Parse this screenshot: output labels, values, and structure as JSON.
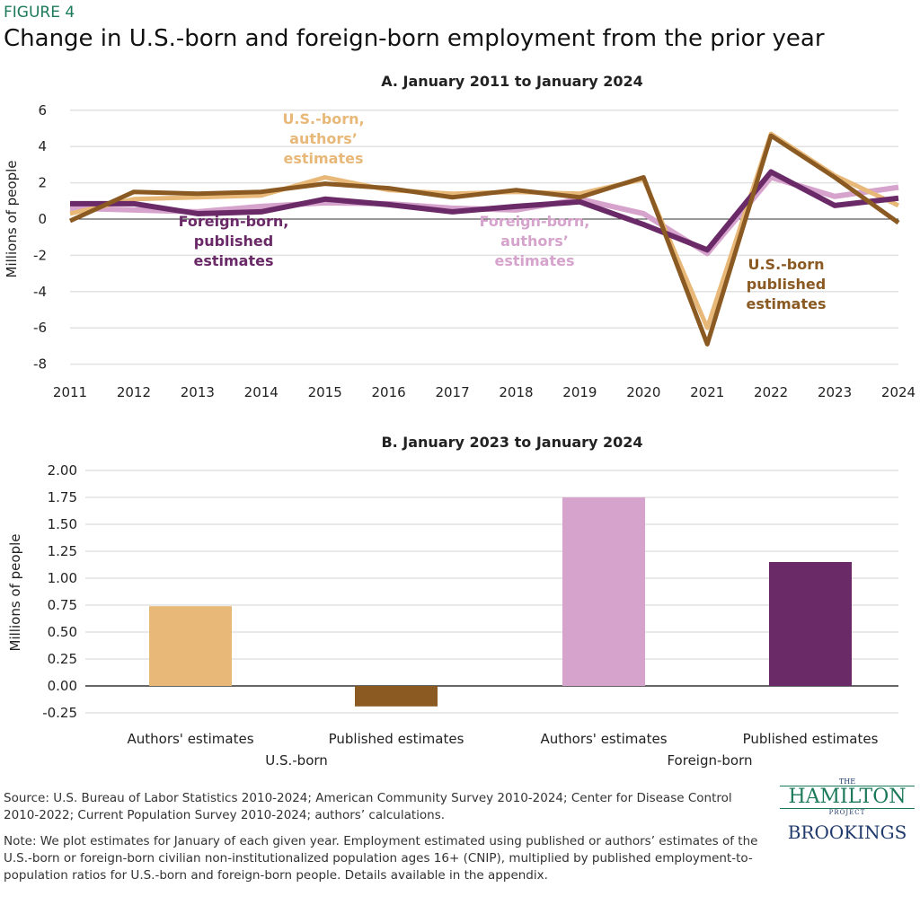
{
  "figure_label": "FIGURE 4",
  "title": "Change in U.S.-born and foreign-born employment from the prior year",
  "source": "Source: U.S. Bureau of Labor Statistics 2010-2024; American Community Survey 2010-2024; Center for Disease Control 2010-2022; Current Population Survey 2010-2024; authors’ calculations.",
  "note": "Note: We plot estimates for January of each given year. Employment estimated using published or authors’ estimates of the U.S.-born or foreign-born civilian non-institutionalized population ages 16+ (CNIP), multiplied by published employment-to-population ratios for U.S.-born and foreign-born people. Details available in the appendix.",
  "logo": {
    "the": "THE",
    "hamilton": "HAMILTON",
    "project": "PROJECT",
    "brookings": "BROOKINGS"
  },
  "chart_data": [
    {
      "type": "line",
      "title": "A. January 2011 to January 2024",
      "ylabel": "Millions of people",
      "ylim": [
        -8,
        6
      ],
      "yticks": [
        6,
        4,
        2,
        0,
        -2,
        -4,
        -6,
        -8
      ],
      "grid": true,
      "x": [
        2011,
        2012,
        2013,
        2014,
        2015,
        2016,
        2017,
        2018,
        2019,
        2020,
        2021,
        2022,
        2023,
        2024
      ],
      "series": [
        {
          "name": "Foreign-born, authors’ estimates",
          "color": "#d6a3cc",
          "values": [
            0.6,
            0.5,
            0.4,
            0.7,
            0.9,
            0.85,
            0.6,
            0.5,
            1.1,
            0.3,
            -1.9,
            2.3,
            1.25,
            1.75
          ]
        },
        {
          "name": "U.S.-born, authors’ estimates",
          "color": "#e8b878",
          "values": [
            0.3,
            1.1,
            1.2,
            1.3,
            2.3,
            1.6,
            1.4,
            1.5,
            1.4,
            2.2,
            -6.0,
            4.7,
            2.4,
            0.75
          ]
        },
        {
          "name": "Foreign-born, published estimates",
          "color": "#6a2a68",
          "values": [
            0.85,
            0.85,
            0.3,
            0.4,
            1.1,
            0.8,
            0.4,
            0.7,
            0.95,
            -0.3,
            -1.7,
            2.6,
            0.75,
            1.15
          ]
        },
        {
          "name": "U.S.-born published estimates",
          "color": "#8a5a22",
          "values": [
            -0.1,
            1.5,
            1.4,
            1.5,
            1.95,
            1.7,
            1.2,
            1.6,
            1.2,
            2.3,
            -6.9,
            4.6,
            2.3,
            -0.2
          ]
        }
      ]
    },
    {
      "type": "bar",
      "title": "B. January 2023 to January 2024",
      "ylabel": "Millions of people",
      "ylim": [
        -0.25,
        2.0
      ],
      "yticks": [
        "2.00",
        "1.75",
        "1.50",
        "1.25",
        "1.00",
        "0.75",
        "0.50",
        "0.25",
        "0.00",
        "-0.25"
      ],
      "grid": true,
      "categories": [
        "Authors' estimates",
        "Published estimates",
        "Authors' estimates",
        "Published estimates"
      ],
      "groups": [
        "U.S.-born",
        "Foreign-born"
      ],
      "values": [
        0.74,
        -0.19,
        1.75,
        1.15
      ],
      "colors": [
        "#e8b878",
        "#8a5a22",
        "#d6a3cc",
        "#6a2a68"
      ]
    }
  ]
}
